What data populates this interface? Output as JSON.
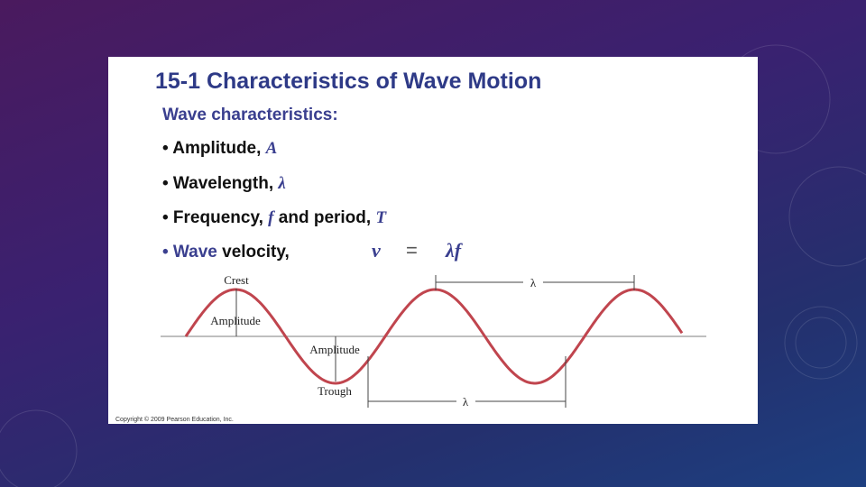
{
  "header": {
    "title": "15-1 Characteristics of Wave Motion"
  },
  "subtitle": "Wave characteristics:",
  "bullets": [
    [
      "• Amplitude,",
      "A"
    ],
    [
      "• Wavelength,",
      "λ"
    ],
    [
      "• Frequency,",
      "f",
      "and period,",
      "T"
    ],
    [
      "• Wave",
      "velocity,"
    ]
  ],
  "formula": [
    "v",
    "=",
    "λf"
  ],
  "diagram": {
    "crest": "Crest",
    "amplitude_top": "Amplitude",
    "amplitude_bottom": "Amplitude",
    "trough": "Trough",
    "wavelength_top": "λ",
    "wavelength_bottom": "λ"
  },
  "copyright": "Copyright © 2009 Pearson Education, Inc."
}
